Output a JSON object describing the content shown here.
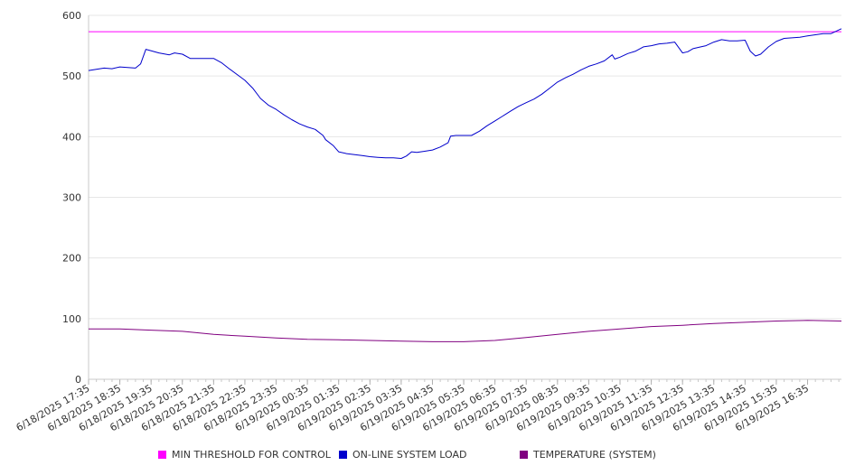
{
  "chart_data": {
    "type": "line",
    "title": "",
    "xlabel": "",
    "ylabel": "",
    "ylim": [
      0,
      600
    ],
    "yticks": [
      0,
      100,
      200,
      300,
      400,
      500,
      600
    ],
    "grid": true,
    "legend_position": "bottom",
    "xlim": [
      "6/18/2025 17:35",
      "6/19/2025 17:40"
    ],
    "x_tick_labels": [
      "6/18/2025 17:35",
      "6/18/2025 18:35",
      "6/18/2025 19:35",
      "6/18/2025 20:35",
      "6/18/2025 21:35",
      "6/18/2025 22:35",
      "6/18/2025 23:35",
      "6/19/2025 00:35",
      "6/19/2025 01:35",
      "6/19/2025 02:35",
      "6/19/2025 03:35",
      "6/19/2025 04:35",
      "6/19/2025 05:35",
      "6/19/2025 06:35",
      "6/19/2025 07:35",
      "6/19/2025 08:35",
      "6/19/2025 09:35",
      "6/19/2025 10:35",
      "6/19/2025 11:35",
      "6/19/2025 12:35",
      "6/19/2025 13:35",
      "6/19/2025 14:35",
      "6/19/2025 15:35",
      "6/19/2025 16:35"
    ],
    "series": [
      {
        "name": "MIN THRESHOLD FOR CONTROL",
        "color": "#ff00ff",
        "points": [
          [
            "6/18/2025 17:35",
            573
          ],
          [
            "6/19/2025 17:40",
            573
          ]
        ]
      },
      {
        "name": "ON-LINE SYSTEM LOAD",
        "color": "#0000cc",
        "points": [
          [
            "6/18/2025 17:35",
            509
          ],
          [
            "6/18/2025 17:50",
            511
          ],
          [
            "6/18/2025 18:05",
            513
          ],
          [
            "6/18/2025 18:20",
            512
          ],
          [
            "6/18/2025 18:35",
            515
          ],
          [
            "6/18/2025 18:50",
            514
          ],
          [
            "6/18/2025 19:05",
            513
          ],
          [
            "6/18/2025 19:15",
            520
          ],
          [
            "6/18/2025 19:25",
            544
          ],
          [
            "6/18/2025 19:50",
            538
          ],
          [
            "6/18/2025 20:10",
            535
          ],
          [
            "6/18/2025 20:20",
            538
          ],
          [
            "6/18/2025 20:35",
            536
          ],
          [
            "6/18/2025 20:50",
            529
          ],
          [
            "6/18/2025 21:20",
            529
          ],
          [
            "6/18/2025 21:35",
            529
          ],
          [
            "6/18/2025 21:50",
            522
          ],
          [
            "6/18/2025 22:05",
            512
          ],
          [
            "6/18/2025 22:35",
            493
          ],
          [
            "6/18/2025 22:50",
            480
          ],
          [
            "6/18/2025 23:05",
            463
          ],
          [
            "6/18/2025 23:20",
            452
          ],
          [
            "6/18/2025 23:35",
            445
          ],
          [
            "6/18/2025 23:50",
            436
          ],
          [
            "6/19/2025 00:05",
            428
          ],
          [
            "6/19/2025 00:20",
            421
          ],
          [
            "6/19/2025 00:35",
            416
          ],
          [
            "6/19/2025 00:50",
            412
          ],
          [
            "6/19/2025 01:05",
            402
          ],
          [
            "6/19/2025 01:10",
            395
          ],
          [
            "6/19/2025 01:25",
            385
          ],
          [
            "6/19/2025 01:35",
            375
          ],
          [
            "6/19/2025 01:50",
            372
          ],
          [
            "6/19/2025 02:20",
            369
          ],
          [
            "6/19/2025 02:35",
            367
          ],
          [
            "6/19/2025 02:50",
            366
          ],
          [
            "6/19/2025 03:05",
            365
          ],
          [
            "6/19/2025 03:20",
            365
          ],
          [
            "6/19/2025 03:35",
            364
          ],
          [
            "6/19/2025 03:45",
            368
          ],
          [
            "6/19/2025 03:55",
            375
          ],
          [
            "6/19/2025 04:05",
            374
          ],
          [
            "6/19/2025 04:20",
            376
          ],
          [
            "6/19/2025 04:35",
            378
          ],
          [
            "6/19/2025 04:50",
            383
          ],
          [
            "6/19/2025 05:05",
            390
          ],
          [
            "6/19/2025 05:10",
            401
          ],
          [
            "6/19/2025 05:20",
            402
          ],
          [
            "6/19/2025 05:35",
            402
          ],
          [
            "6/19/2025 05:50",
            402
          ],
          [
            "6/19/2025 06:05",
            409
          ],
          [
            "6/19/2025 06:20",
            418
          ],
          [
            "6/19/2025 06:35",
            426
          ],
          [
            "6/19/2025 06:50",
            434
          ],
          [
            "6/19/2025 07:05",
            442
          ],
          [
            "6/19/2025 07:20",
            450
          ],
          [
            "6/19/2025 07:35",
            456
          ],
          [
            "6/19/2025 07:50",
            462
          ],
          [
            "6/19/2025 08:05",
            470
          ],
          [
            "6/19/2025 08:20",
            480
          ],
          [
            "6/19/2025 08:35",
            490
          ],
          [
            "6/19/2025 08:50",
            497
          ],
          [
            "6/19/2025 09:05",
            503
          ],
          [
            "6/19/2025 09:20",
            510
          ],
          [
            "6/19/2025 09:35",
            516
          ],
          [
            "6/19/2025 09:50",
            520
          ],
          [
            "6/19/2025 10:05",
            525
          ],
          [
            "6/19/2025 10:20",
            535
          ],
          [
            "6/19/2025 10:25",
            528
          ],
          [
            "6/19/2025 10:35",
            531
          ],
          [
            "6/19/2025 10:50",
            537
          ],
          [
            "6/19/2025 11:05",
            541
          ],
          [
            "6/19/2025 11:20",
            548
          ],
          [
            "6/19/2025 11:35",
            550
          ],
          [
            "6/19/2025 11:50",
            553
          ],
          [
            "6/19/2025 12:05",
            554
          ],
          [
            "6/19/2025 12:20",
            556
          ],
          [
            "6/19/2025 12:35",
            538
          ],
          [
            "6/19/2025 12:45",
            540
          ],
          [
            "6/19/2025 12:55",
            545
          ],
          [
            "6/19/2025 13:10",
            548
          ],
          [
            "6/19/2025 13:20",
            550
          ],
          [
            "6/19/2025 13:35",
            556
          ],
          [
            "6/19/2025 13:50",
            560
          ],
          [
            "6/19/2025 14:05",
            558
          ],
          [
            "6/19/2025 14:20",
            558
          ],
          [
            "6/19/2025 14:35",
            559
          ],
          [
            "6/19/2025 14:45",
            541
          ],
          [
            "6/19/2025 14:55",
            533
          ],
          [
            "6/19/2025 15:05",
            536
          ],
          [
            "6/19/2025 15:20",
            548
          ],
          [
            "6/19/2025 15:35",
            557
          ],
          [
            "6/19/2025 15:50",
            562
          ],
          [
            "6/19/2025 16:05",
            563
          ],
          [
            "6/19/2025 16:20",
            564
          ],
          [
            "6/19/2025 16:35",
            566
          ],
          [
            "6/19/2025 16:50",
            568
          ],
          [
            "6/19/2025 17:05",
            570
          ],
          [
            "6/19/2025 17:20",
            570
          ],
          [
            "6/19/2025 17:40",
            578
          ]
        ]
      },
      {
        "name": "TEMPERATURE (SYSTEM)",
        "color": "#800080",
        "points": [
          [
            "6/18/2025 17:35",
            83
          ],
          [
            "6/18/2025 18:35",
            83
          ],
          [
            "6/18/2025 19:35",
            81
          ],
          [
            "6/18/2025 20:35",
            79
          ],
          [
            "6/18/2025 21:35",
            74
          ],
          [
            "6/18/2025 22:35",
            71
          ],
          [
            "6/18/2025 23:35",
            68
          ],
          [
            "6/19/2025 00:35",
            66
          ],
          [
            "6/19/2025 01:35",
            65
          ],
          [
            "6/19/2025 02:35",
            64
          ],
          [
            "6/19/2025 03:35",
            63
          ],
          [
            "6/19/2025 04:35",
            62
          ],
          [
            "6/19/2025 05:35",
            62
          ],
          [
            "6/19/2025 06:35",
            64
          ],
          [
            "6/19/2025 07:35",
            69
          ],
          [
            "6/19/2025 08:35",
            74
          ],
          [
            "6/19/2025 09:35",
            79
          ],
          [
            "6/19/2025 10:35",
            83
          ],
          [
            "6/19/2025 11:35",
            87
          ],
          [
            "6/19/2025 12:35",
            89
          ],
          [
            "6/19/2025 13:35",
            92
          ],
          [
            "6/19/2025 14:35",
            94
          ],
          [
            "6/19/2025 15:35",
            96
          ],
          [
            "6/19/2025 16:35",
            97
          ],
          [
            "6/19/2025 17:40",
            96
          ]
        ]
      }
    ]
  }
}
